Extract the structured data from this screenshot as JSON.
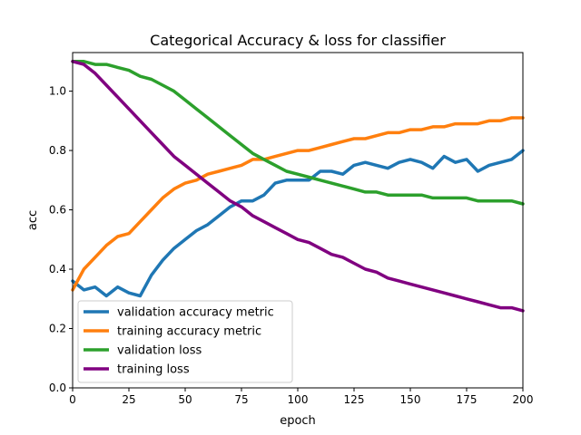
{
  "chart_data": {
    "type": "line",
    "title": "Categorical Accuracy & loss for classifier",
    "xlabel": "epoch",
    "ylabel": "acc",
    "xlim": [
      0,
      200
    ],
    "ylim": [
      0,
      1.13
    ],
    "xticks": [
      0,
      25,
      50,
      75,
      100,
      125,
      150,
      175,
      200
    ],
    "yticks": [
      0.0,
      0.2,
      0.4,
      0.6,
      0.8,
      1.0
    ],
    "xtick_labels": [
      "0",
      "25",
      "50",
      "75",
      "100",
      "125",
      "150",
      "175",
      "200"
    ],
    "ytick_labels": [
      "0.0",
      "0.2",
      "0.4",
      "0.6",
      "0.8",
      "1.0"
    ],
    "grid": false,
    "legend_position": "lower-left",
    "series": [
      {
        "name": "validation accuracy metric",
        "color": "#1f77b4",
        "x": [
          0,
          5,
          10,
          15,
          20,
          25,
          30,
          35,
          40,
          45,
          50,
          55,
          60,
          65,
          70,
          75,
          80,
          85,
          90,
          95,
          100,
          105,
          110,
          115,
          120,
          125,
          130,
          135,
          140,
          145,
          150,
          155,
          160,
          165,
          170,
          175,
          180,
          185,
          190,
          195,
          200
        ],
        "values": [
          0.36,
          0.33,
          0.34,
          0.31,
          0.34,
          0.32,
          0.31,
          0.38,
          0.43,
          0.47,
          0.5,
          0.53,
          0.55,
          0.58,
          0.61,
          0.63,
          0.63,
          0.65,
          0.69,
          0.7,
          0.7,
          0.7,
          0.73,
          0.73,
          0.72,
          0.75,
          0.76,
          0.75,
          0.74,
          0.76,
          0.77,
          0.76,
          0.74,
          0.78,
          0.76,
          0.77,
          0.73,
          0.75,
          0.76,
          0.77,
          0.8
        ]
      },
      {
        "name": "training accuracy metric",
        "color": "#ff7f0e",
        "x": [
          0,
          5,
          10,
          15,
          20,
          25,
          30,
          35,
          40,
          45,
          50,
          55,
          60,
          65,
          70,
          75,
          80,
          85,
          90,
          95,
          100,
          105,
          110,
          115,
          120,
          125,
          130,
          135,
          140,
          145,
          150,
          155,
          160,
          165,
          170,
          175,
          180,
          185,
          190,
          195,
          200
        ],
        "values": [
          0.33,
          0.4,
          0.44,
          0.48,
          0.51,
          0.52,
          0.56,
          0.6,
          0.64,
          0.67,
          0.69,
          0.7,
          0.72,
          0.73,
          0.74,
          0.75,
          0.77,
          0.77,
          0.78,
          0.79,
          0.8,
          0.8,
          0.81,
          0.82,
          0.83,
          0.84,
          0.84,
          0.85,
          0.86,
          0.86,
          0.87,
          0.87,
          0.88,
          0.88,
          0.89,
          0.89,
          0.89,
          0.9,
          0.9,
          0.91,
          0.91
        ]
      },
      {
        "name": "validation loss",
        "color": "#2ca02c",
        "x": [
          0,
          5,
          10,
          15,
          20,
          25,
          30,
          35,
          40,
          45,
          50,
          55,
          60,
          65,
          70,
          75,
          80,
          85,
          90,
          95,
          100,
          105,
          110,
          115,
          120,
          125,
          130,
          135,
          140,
          145,
          150,
          155,
          160,
          165,
          170,
          175,
          180,
          185,
          190,
          195,
          200
        ],
        "values": [
          1.1,
          1.1,
          1.09,
          1.09,
          1.08,
          1.07,
          1.05,
          1.04,
          1.02,
          1.0,
          0.97,
          0.94,
          0.91,
          0.88,
          0.85,
          0.82,
          0.79,
          0.77,
          0.75,
          0.73,
          0.72,
          0.71,
          0.7,
          0.69,
          0.68,
          0.67,
          0.66,
          0.66,
          0.65,
          0.65,
          0.65,
          0.65,
          0.64,
          0.64,
          0.64,
          0.64,
          0.63,
          0.63,
          0.63,
          0.63,
          0.62
        ]
      },
      {
        "name": "training loss",
        "color": "#800080",
        "x": [
          0,
          5,
          10,
          15,
          20,
          25,
          30,
          35,
          40,
          45,
          50,
          55,
          60,
          65,
          70,
          75,
          80,
          85,
          90,
          95,
          100,
          105,
          110,
          115,
          120,
          125,
          130,
          135,
          140,
          145,
          150,
          155,
          160,
          165,
          170,
          175,
          180,
          185,
          190,
          195,
          200
        ],
        "values": [
          1.1,
          1.09,
          1.06,
          1.02,
          0.98,
          0.94,
          0.9,
          0.86,
          0.82,
          0.78,
          0.75,
          0.72,
          0.69,
          0.66,
          0.63,
          0.61,
          0.58,
          0.56,
          0.54,
          0.52,
          0.5,
          0.49,
          0.47,
          0.45,
          0.44,
          0.42,
          0.4,
          0.39,
          0.37,
          0.36,
          0.35,
          0.34,
          0.33,
          0.32,
          0.31,
          0.3,
          0.29,
          0.28,
          0.27,
          0.27,
          0.26
        ]
      }
    ]
  }
}
